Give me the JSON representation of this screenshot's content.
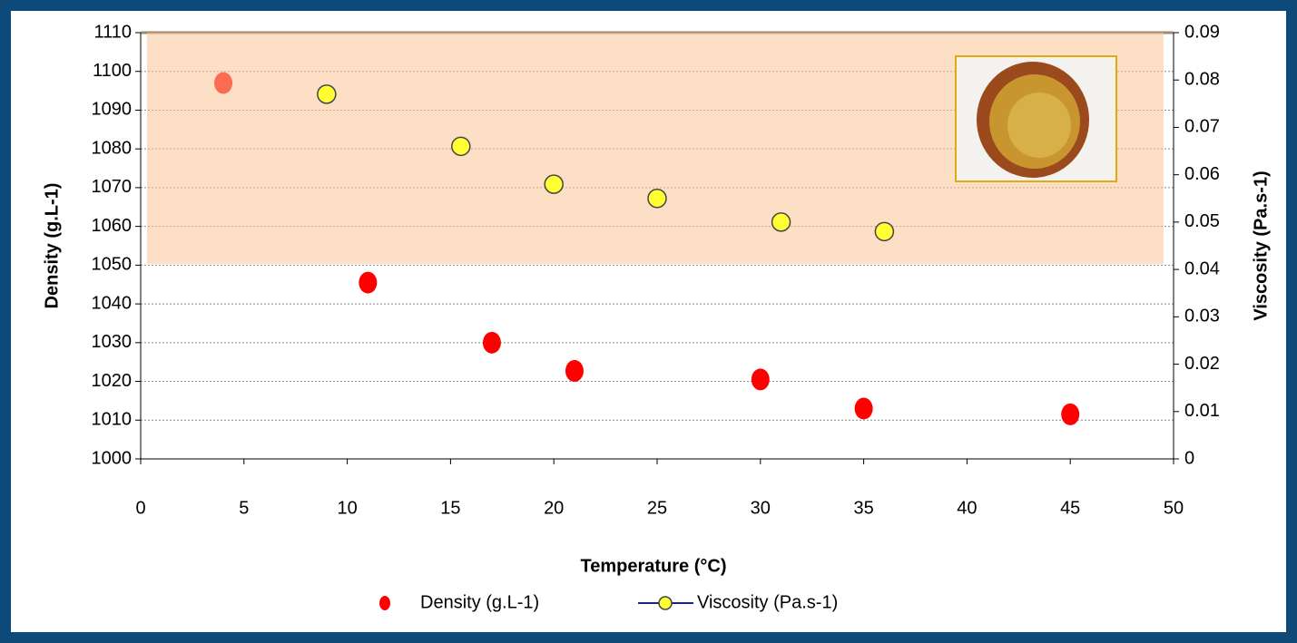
{
  "chart_data": {
    "type": "scatter",
    "xlabel": "Temperature (°C)",
    "ylabel": "Density (g.L-1)",
    "y2label": "Viscosity (Pa.s-1)",
    "xlim": [
      0,
      50
    ],
    "xticks": [
      0,
      5,
      10,
      15,
      20,
      25,
      30,
      35,
      40,
      45,
      50
    ],
    "ylim": [
      1000,
      1110
    ],
    "yticks": [
      1000,
      1010,
      1020,
      1030,
      1040,
      1050,
      1060,
      1070,
      1080,
      1090,
      1100,
      1110
    ],
    "y2lim": [
      0,
      0.09
    ],
    "y2ticks": [
      0,
      0.01,
      0.02,
      0.03,
      0.04,
      0.05,
      0.06,
      0.07,
      0.08,
      0.09
    ],
    "grid": true,
    "legend": "bottom",
    "series": [
      {
        "name": "Density (g.L-1)",
        "color": "#ff0000",
        "x": [
          4,
          11,
          17,
          21,
          30,
          35,
          45
        ],
        "values": [
          1097,
          1045.5,
          1030,
          1022.7,
          1020.5,
          1013,
          1011.5
        ]
      },
      {
        "name": "Viscosity (Pa.s-1)",
        "color": "#ffff33",
        "axis": "y2",
        "x": [
          9,
          15.5,
          20,
          25,
          31,
          36
        ],
        "values": [
          0.077,
          0.066,
          0.058,
          0.055,
          0.05,
          0.048
        ]
      }
    ]
  }
}
